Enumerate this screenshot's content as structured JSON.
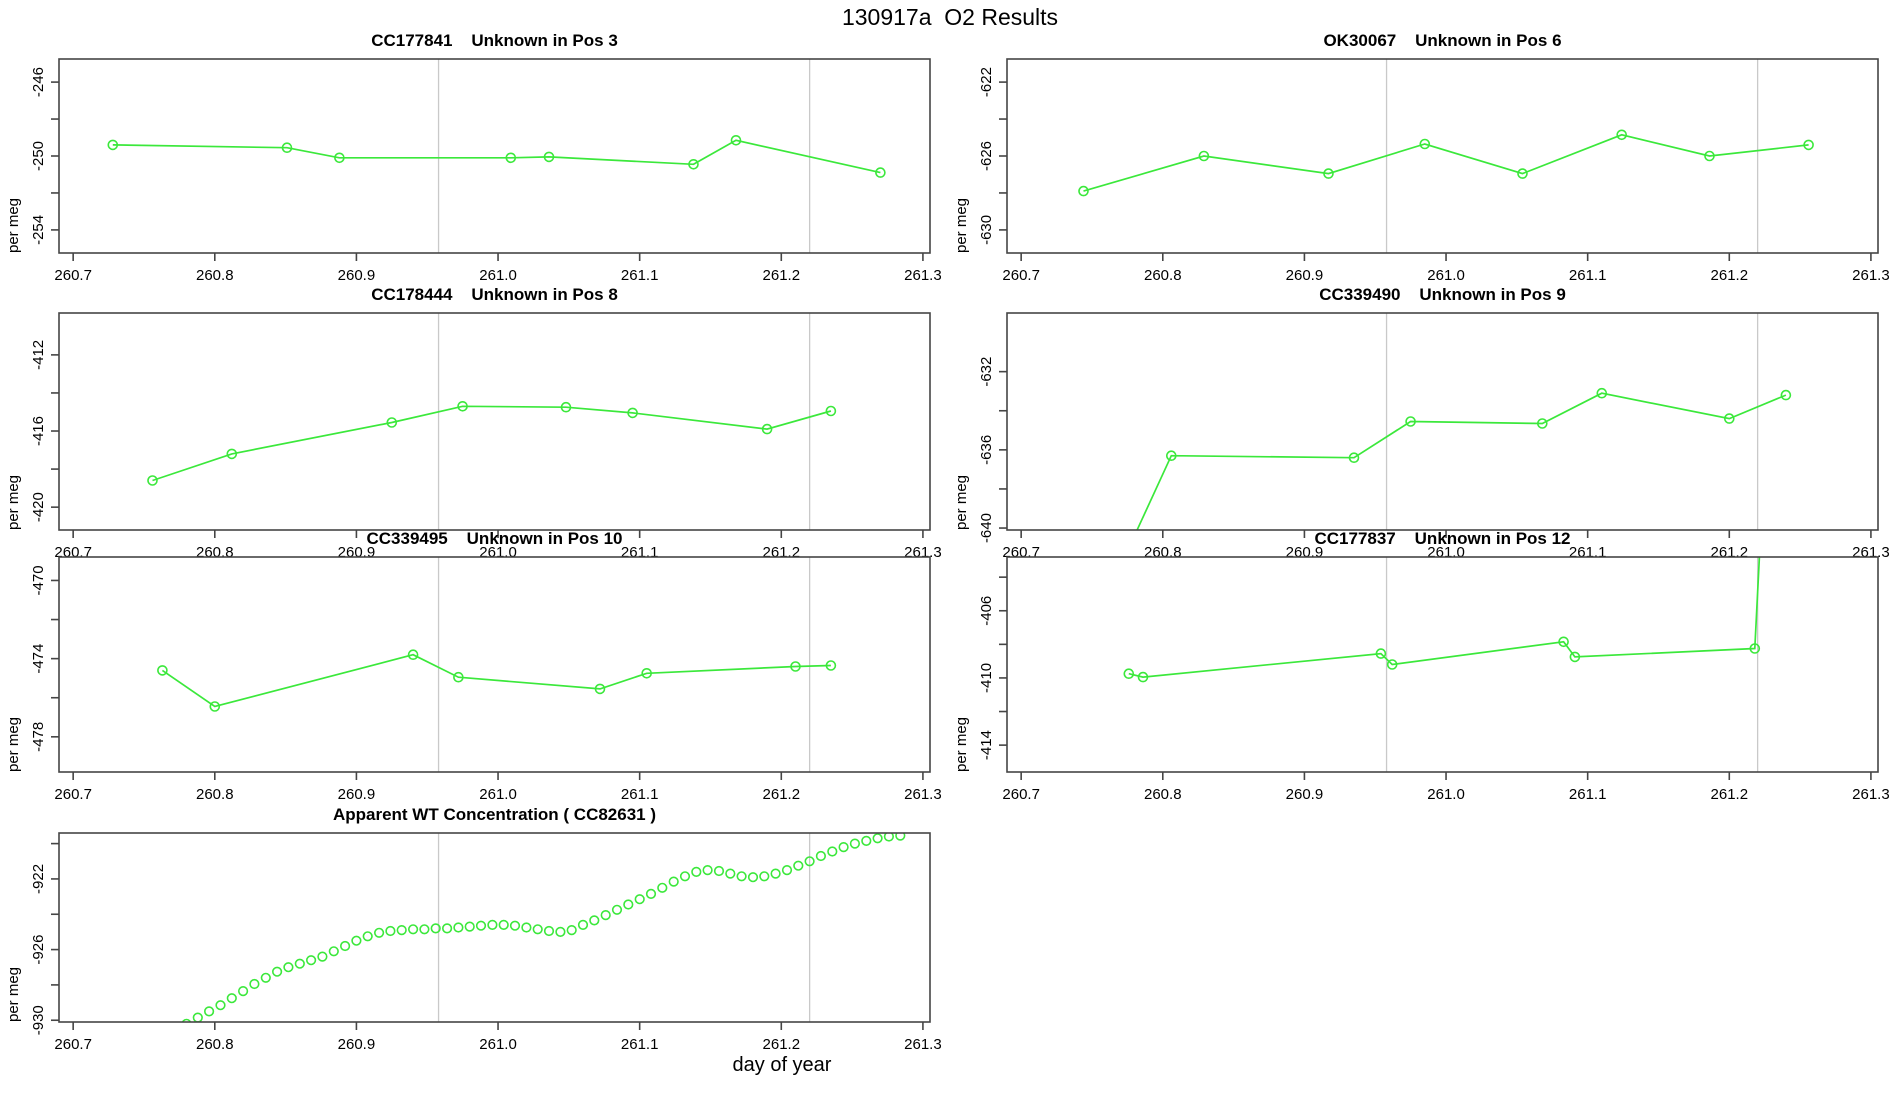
{
  "title": "130917a  O2 Results",
  "xlabel": "day of year",
  "colors": {
    "series": "#3BE83B",
    "vline": "#C9C9C9",
    "axis": "#454545",
    "text": "#000000"
  },
  "xlim": [
    260.69,
    261.305
  ],
  "xticks": [
    260.7,
    260.8,
    260.9,
    261.0,
    261.1,
    261.2,
    261.3
  ],
  "xtick_labels": [
    "260.7",
    "260.8",
    "260.9",
    "261.0",
    "261.1",
    "261.2",
    "261.3"
  ],
  "vlines": [
    260.958,
    261.22
  ],
  "chart_data": [
    {
      "type": "line",
      "title": "CC177841    Unknown in Pos 3",
      "ylabel": "per meg",
      "ylim": [
        -255.25,
        -244.75
      ],
      "yticks": [
        -246,
        -248,
        -250,
        -252,
        -254
      ],
      "ytick_labels": [
        "-246",
        "",
        "-250",
        "",
        "-254"
      ],
      "x": [
        260.728,
        260.851,
        260.888,
        261.009,
        261.036,
        261.138,
        261.168,
        261.27
      ],
      "y": [
        -249.4,
        -249.55,
        -250.1,
        -250.1,
        -250.05,
        -250.45,
        -249.15,
        -250.9
      ]
    },
    {
      "type": "line",
      "title": "OK30067    Unknown in Pos 6",
      "ylabel": "per meg",
      "ylim": [
        -631.25,
        -620.75
      ],
      "yticks": [
        -622,
        -624,
        -626,
        -628,
        -630
      ],
      "ytick_labels": [
        "-622",
        "",
        "-626",
        "",
        "-630"
      ],
      "x": [
        260.744,
        260.829,
        260.917,
        260.985,
        261.054,
        261.124,
        261.186,
        261.256
      ],
      "y": [
        -627.9,
        -626.0,
        -626.95,
        -625.35,
        -626.95,
        -624.85,
        -626.0,
        -625.4
      ]
    },
    {
      "type": "line",
      "title": "CC178444    Unknown in Pos 8",
      "ylabel": "per meg",
      "ylim": [
        -421.2,
        -409.8
      ],
      "yticks": [
        -412,
        -414,
        -416,
        -418,
        -420
      ],
      "ytick_labels": [
        "-412",
        "",
        "-416",
        "",
        "-420"
      ],
      "x": [
        260.756,
        260.812,
        260.925,
        260.975,
        261.048,
        261.095,
        261.19,
        261.235
      ],
      "y": [
        -418.6,
        -417.2,
        -415.55,
        -414.7,
        -414.75,
        -415.05,
        -415.9,
        -414.95
      ]
    },
    {
      "type": "line",
      "title": "CC339490    Unknown in Pos 9",
      "ylabel": "per meg",
      "ylim": [
        -640.1,
        -629.0
      ],
      "yticks": [
        -632,
        -634,
        -636,
        -638,
        -640
      ],
      "ytick_labels": [
        "-632",
        "",
        "-636",
        "",
        "-640"
      ],
      "x": [
        260.773,
        260.806,
        260.935,
        260.975,
        261.068,
        261.11,
        261.2,
        261.24
      ],
      "y": [
        -641.5,
        -636.3,
        -636.4,
        -634.55,
        -634.65,
        -633.1,
        -634.4,
        -633.2
      ]
    },
    {
      "type": "line",
      "title": "CC339495    Unknown in Pos 10",
      "ylabel": "per meg",
      "ylim": [
        -479.8,
        -468.8
      ],
      "yticks": [
        -470,
        -472,
        -474,
        -476,
        -478
      ],
      "ytick_labels": [
        "-470",
        "",
        "-474",
        "",
        "-478"
      ],
      "x": [
        260.763,
        260.8,
        260.94,
        260.972,
        261.072,
        261.105,
        261.21,
        261.235
      ],
      "y": [
        -474.6,
        -476.45,
        -473.8,
        -474.95,
        -475.55,
        -474.75,
        -474.4,
        -474.35
      ]
    },
    {
      "type": "line",
      "title": "CC177837    Unknown in Pos 12",
      "ylabel": "per meg",
      "ylim": [
        -415.6,
        -402.8
      ],
      "yticks": [
        -404,
        -406,
        -408,
        -410,
        -412,
        -414
      ],
      "ytick_labels": [
        "",
        "-406",
        "",
        "-410",
        "",
        "-414"
      ],
      "x": [
        260.776,
        260.786,
        260.954,
        260.962,
        261.083,
        261.091,
        261.218,
        261.222
      ],
      "y": [
        -409.75,
        -409.95,
        -408.55,
        -409.2,
        -407.85,
        -408.75,
        -408.25,
        -401.5
      ]
    },
    {
      "type": "scatter",
      "title": "Apparent WT Concentration ( CC82631 )",
      "ylabel": "per meg",
      "ylim": [
        -930.1,
        -919.4
      ],
      "yticks": [
        -920,
        -922,
        -924,
        -926,
        -928,
        -930
      ],
      "ytick_labels": [
        "",
        "-922",
        "",
        "-926",
        "",
        "-930"
      ],
      "x": [
        260.78,
        260.788,
        260.796,
        260.804,
        260.812,
        260.82,
        260.828,
        260.836,
        260.844,
        260.852,
        260.86,
        260.868,
        260.876,
        260.884,
        260.892,
        260.9,
        260.908,
        260.916,
        260.924,
        260.932,
        260.94,
        260.948,
        260.956,
        260.964,
        260.972,
        260.98,
        260.988,
        260.996,
        261.004,
        261.012,
        261.02,
        261.028,
        261.036,
        261.044,
        261.052,
        261.06,
        261.068,
        261.076,
        261.084,
        261.092,
        261.1,
        261.108,
        261.116,
        261.124,
        261.132,
        261.14,
        261.148,
        261.156,
        261.164,
        261.172,
        261.18,
        261.188,
        261.196,
        261.204,
        261.212,
        261.22,
        261.228,
        261.236,
        261.244,
        261.252,
        261.26,
        261.268,
        261.276,
        261.284
      ],
      "y": [
        -930.2,
        -929.85,
        -929.5,
        -929.15,
        -928.75,
        -928.35,
        -927.95,
        -927.6,
        -927.25,
        -927.0,
        -926.8,
        -926.6,
        -926.4,
        -926.1,
        -925.8,
        -925.5,
        -925.25,
        -925.05,
        -924.95,
        -924.9,
        -924.85,
        -924.85,
        -924.8,
        -924.8,
        -924.75,
        -924.7,
        -924.65,
        -924.6,
        -924.6,
        -924.65,
        -924.75,
        -924.85,
        -924.95,
        -925.0,
        -924.9,
        -924.6,
        -924.35,
        -924.05,
        -923.75,
        -923.45,
        -923.15,
        -922.85,
        -922.5,
        -922.15,
        -921.85,
        -921.6,
        -921.5,
        -921.55,
        -921.7,
        -921.85,
        -921.9,
        -921.85,
        -921.7,
        -921.5,
        -921.25,
        -921.0,
        -920.7,
        -920.45,
        -920.2,
        -920.0,
        -919.85,
        -919.7,
        -919.6,
        -919.55
      ]
    }
  ]
}
